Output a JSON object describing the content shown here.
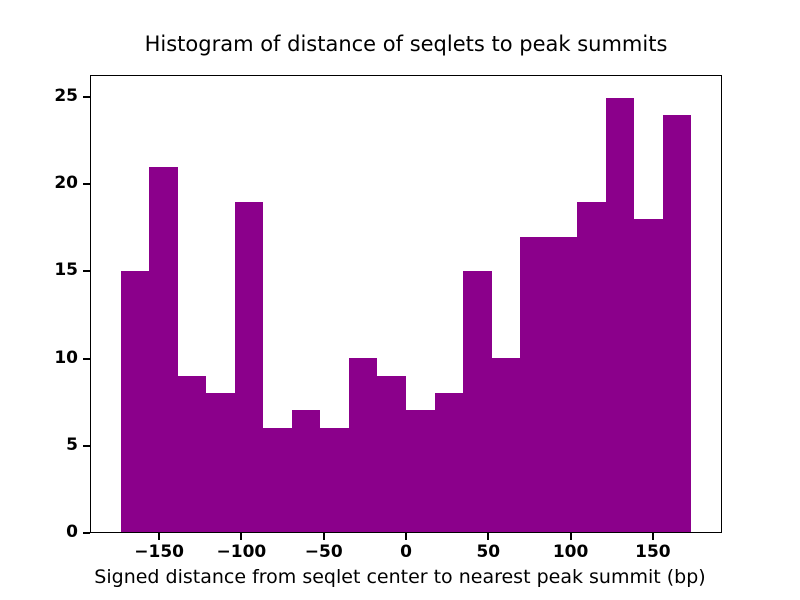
{
  "chart_data": {
    "type": "bar",
    "title": "Histogram of distance of seqlets to peak summits",
    "xlabel": "Signed distance from seqlet center to nearest peak summit (bp)",
    "ylabel": "",
    "bar_color": "#8B008B",
    "bin_start": -174,
    "bin_width": 17.4,
    "values": [
      15,
      21,
      9,
      8,
      19,
      6,
      7,
      6,
      10,
      9,
      7,
      8,
      15,
      10,
      17,
      17,
      19,
      25,
      18,
      24
    ],
    "x_ticks": [
      -150,
      -100,
      -50,
      0,
      50,
      100,
      150
    ],
    "x_tick_labels": [
      "−150",
      "−100",
      "−50",
      "0",
      "50",
      "100",
      "150"
    ],
    "y_ticks": [
      0,
      5,
      10,
      15,
      20,
      25
    ],
    "y_tick_labels": [
      "0",
      "5",
      "10",
      "15",
      "20",
      "25"
    ],
    "xlim": [
      -192,
      192
    ],
    "ylim": [
      0,
      26.25
    ],
    "grid": false,
    "legend": "none"
  }
}
